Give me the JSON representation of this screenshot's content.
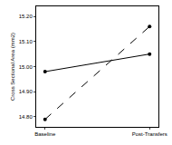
{
  "chart_data": {
    "type": "line",
    "categories": [
      "Baseline",
      "Post-Transfers"
    ],
    "ylabel": "Cross Sectional Area (mm2)",
    "series": [
      {
        "color": "#000000",
        "line_style": "solid",
        "marker": "circle",
        "values": [
          14.98,
          15.05
        ]
      },
      {
        "color": "#000000",
        "line_style": "dashed",
        "marker": "circle",
        "values": [
          14.79,
          15.16
        ]
      }
    ],
    "ylim": [
      14.76,
      15.24
    ],
    "yticks": [
      {
        "value": 14.8,
        "label": "14.80"
      },
      {
        "value": 14.9,
        "label": "14.90"
      },
      {
        "value": 15.0,
        "label": "15.00"
      },
      {
        "value": 15.1,
        "label": "15.10"
      },
      {
        "value": 15.2,
        "label": "15.20"
      }
    ],
    "grid": false
  }
}
